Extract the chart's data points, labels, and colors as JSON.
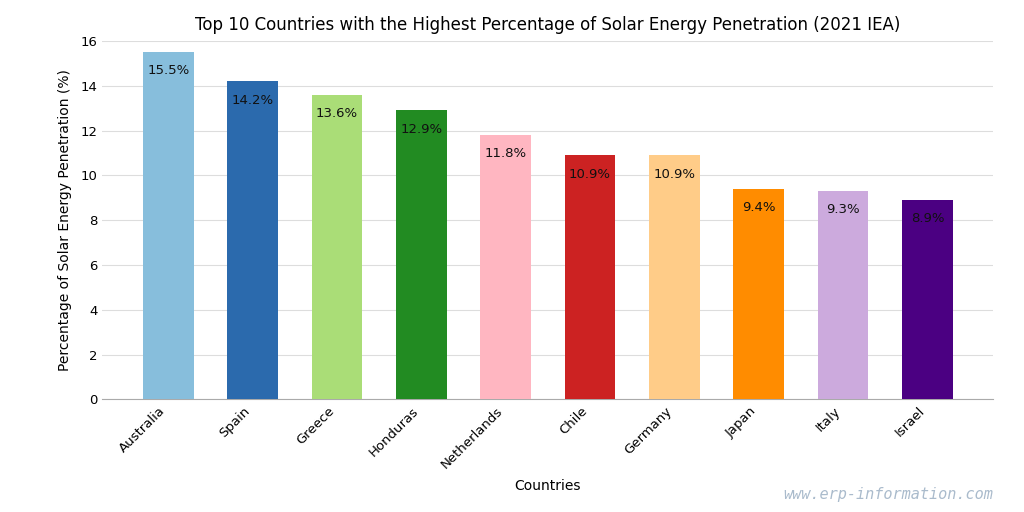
{
  "title": "Top 10 Countries with the Highest Percentage of Solar Energy Penetration (2021 IEA)",
  "xlabel": "Countries",
  "ylabel": "Percentage of Solar Energy Penetration (%)",
  "categories": [
    "Australia",
    "Spain",
    "Greece",
    "Honduras",
    "Netherlands",
    "Chile",
    "Germany",
    "Japan",
    "Italy",
    "Israel"
  ],
  "values": [
    15.5,
    14.2,
    13.6,
    12.9,
    11.8,
    10.9,
    10.9,
    9.4,
    9.3,
    8.9
  ],
  "labels": [
    "15.5%",
    "14.2%",
    "13.6%",
    "12.9%",
    "11.8%",
    "10.9%",
    "10.9%",
    "9.4%",
    "9.3%",
    "8.9%"
  ],
  "bar_colors": [
    "#87BEDC",
    "#2B6AAD",
    "#AADD77",
    "#228B22",
    "#FFB6C1",
    "#CC2222",
    "#FFCC88",
    "#FF8C00",
    "#CCAADD",
    "#4B0082"
  ],
  "ylim": [
    0,
    16
  ],
  "yticks": [
    0,
    2,
    4,
    6,
    8,
    10,
    12,
    14,
    16
  ],
  "background_color": "#FFFFFF",
  "grid_color": "#DDDDDD",
  "watermark": "www.erp-information.com",
  "title_fontsize": 12,
  "label_fontsize": 9.5,
  "axis_label_fontsize": 10,
  "tick_fontsize": 9.5,
  "bar_width": 0.6
}
